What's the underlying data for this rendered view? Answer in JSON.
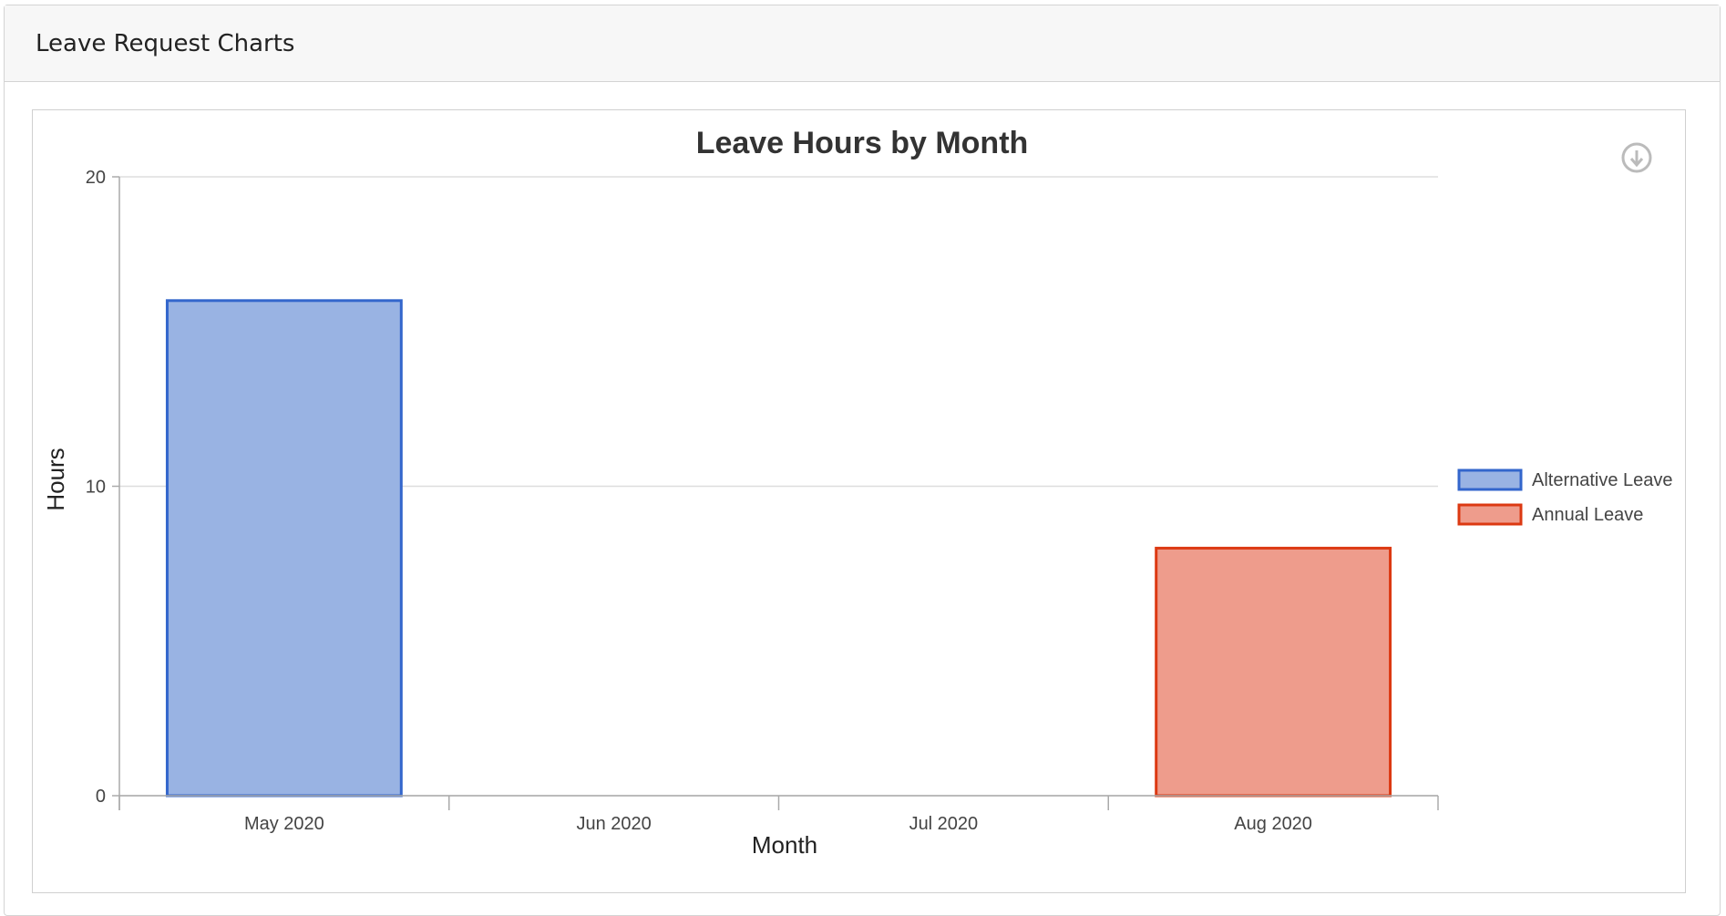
{
  "panel": {
    "title": "Leave Request Charts"
  },
  "toolbar": {
    "download_icon": "download-icon"
  },
  "colors": {
    "alt_fill": "#99b3e3",
    "alt_stroke": "#3366cc",
    "annual_fill": "#ee9c8c",
    "annual_stroke": "#dc3912",
    "grid": "#dddddd",
    "axis": "#aaaaaa",
    "icon": "#bbbbbb"
  },
  "chart_data": {
    "type": "bar",
    "title": "Leave Hours by Month",
    "xlabel": "Month",
    "ylabel": "Hours",
    "categories": [
      "May 2020",
      "Jun 2020",
      "Jul 2020",
      "Aug 2020"
    ],
    "ylim": [
      0,
      20
    ],
    "yticks": [
      "0",
      "10",
      "20"
    ],
    "grid": true,
    "legend_position": "right",
    "series": [
      {
        "name": "Alternative Leave",
        "values": [
          16,
          0,
          0,
          0
        ]
      },
      {
        "name": "Annual Leave",
        "values": [
          0,
          0,
          0,
          8
        ]
      }
    ]
  }
}
